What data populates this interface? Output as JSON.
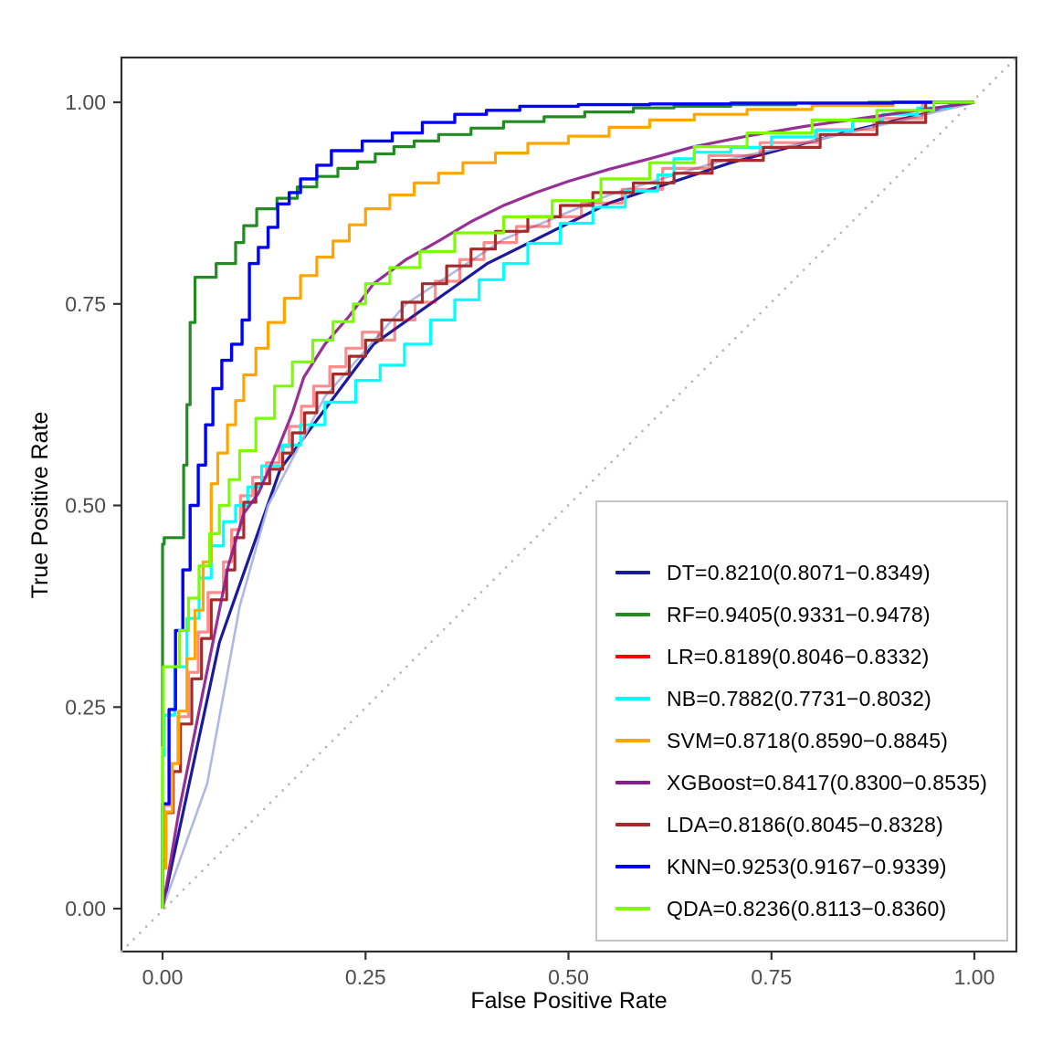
{
  "figure": {
    "kind": "ROC curve comparison plot",
    "background_color": "#ffffff"
  },
  "chart_data": {
    "type": "line",
    "title": "",
    "xlabel": "False Positive Rate",
    "ylabel": "True Positive Rate",
    "xlim": [
      0,
      1
    ],
    "ylim": [
      0,
      1
    ],
    "grid": false,
    "x_ticks": [
      "0.00",
      "0.25",
      "0.50",
      "0.75",
      "1.00"
    ],
    "y_ticks": [
      "0.00",
      "0.25",
      "0.50",
      "0.75",
      "1.00"
    ],
    "x_tick_values": [
      0,
      0.25,
      0.5,
      0.75,
      1
    ],
    "y_tick_values": [
      0,
      0.25,
      0.5,
      0.75,
      1
    ],
    "diagonal_reference": {
      "description": "chance line y = x",
      "style": "dotted",
      "color": "#b5b5b5",
      "from": [
        0,
        0
      ],
      "to": [
        1,
        1
      ]
    },
    "legend": {
      "position": "bottom-right",
      "border_color": "#c5c5c5",
      "background": "#ffffff"
    },
    "series": [
      {
        "name": "DT",
        "label": "DT=0.8210(0.8071−0.8349)",
        "auc": 0.821,
        "ci_low": 0.8071,
        "ci_high": 0.8349,
        "color": "#1a1a9c",
        "width": 3.2,
        "opacity": 1,
        "step": false,
        "z": 1,
        "in_legend": true,
        "x": [
          0,
          0.07,
          0.145,
          0.26,
          0.4,
          0.55,
          0.7,
          0.85,
          1
        ],
        "y": [
          0,
          0.33,
          0.545,
          0.7,
          0.8,
          0.875,
          0.925,
          0.965,
          1
        ]
      },
      {
        "name": "RF",
        "label": "RF=0.9405(0.9331−0.9478)",
        "auc": 0.9405,
        "ci_low": 0.9331,
        "ci_high": 0.9478,
        "color": "#228B22",
        "width": 3.2,
        "opacity": 1,
        "step": true,
        "z": 8,
        "in_legend": true,
        "x": [
          0,
          0.002,
          0.026,
          0.03,
          0.034,
          0.04,
          0.066,
          0.09,
          0.1,
          0.116,
          0.141,
          0.166,
          0.19,
          0.216,
          0.24,
          0.262,
          0.285,
          0.31,
          0.34,
          0.38,
          0.42,
          0.47,
          0.52,
          0.58,
          0.63,
          0.7,
          0.78,
          0.87,
          1
        ],
        "y": [
          0,
          0.452,
          0.46,
          0.55,
          0.625,
          0.727,
          0.783,
          0.8,
          0.826,
          0.847,
          0.868,
          0.881,
          0.895,
          0.908,
          0.918,
          0.926,
          0.936,
          0.945,
          0.952,
          0.96,
          0.968,
          0.976,
          0.982,
          0.988,
          0.993,
          0.995,
          0.997,
          0.999,
          1
        ]
      },
      {
        "name": "LR",
        "label": "LR=0.8189(0.8046−0.8332)",
        "auc": 0.8189,
        "ci_low": 0.8046,
        "ci_high": 0.8332,
        "color": "#ff0000",
        "width": 3.2,
        "opacity": 0.45,
        "step": true,
        "z": 3,
        "in_legend": true,
        "x": [
          0,
          0.002,
          0.01,
          0.019,
          0.032,
          0.044,
          0.056,
          0.075,
          0.085,
          0.096,
          0.111,
          0.128,
          0.144,
          0.156,
          0.171,
          0.186,
          0.206,
          0.226,
          0.246,
          0.266,
          0.286,
          0.311,
          0.336,
          0.366,
          0.396,
          0.436,
          0.476,
          0.516,
          0.566,
          0.616,
          0.673,
          0.736,
          0.806,
          0.876,
          0.936,
          1
        ],
        "y": [
          0,
          0.07,
          0.128,
          0.18,
          0.238,
          0.293,
          0.343,
          0.392,
          0.43,
          0.47,
          0.512,
          0.535,
          0.553,
          0.573,
          0.598,
          0.623,
          0.648,
          0.672,
          0.695,
          0.715,
          0.705,
          0.73,
          0.752,
          0.778,
          0.805,
          0.826,
          0.846,
          0.858,
          0.875,
          0.892,
          0.918,
          0.934,
          0.95,
          0.966,
          0.98,
          1
        ]
      },
      {
        "name": "NB",
        "label": "NB=0.7882(0.7731−0.8032)",
        "auc": 0.7882,
        "ci_low": 0.7731,
        "ci_high": 0.8032,
        "color": "#00FFFF",
        "width": 3.2,
        "opacity": 1,
        "step": true,
        "z": 4,
        "in_legend": true,
        "x": [
          0,
          0.002,
          0.015,
          0.03,
          0.045,
          0.06,
          0.075,
          0.09,
          0.105,
          0.122,
          0.148,
          0.17,
          0.2,
          0.238,
          0.268,
          0.298,
          0.33,
          0.36,
          0.39,
          0.42,
          0.45,
          0.49,
          0.53,
          0.57,
          0.61,
          0.63,
          0.655,
          0.7,
          0.75,
          0.804,
          0.85,
          0.887,
          0.93,
          0.97,
          1
        ],
        "y": [
          0,
          0.19,
          0.24,
          0.3,
          0.36,
          0.41,
          0.45,
          0.48,
          0.5,
          0.523,
          0.549,
          0.575,
          0.6,
          0.628,
          0.655,
          0.674,
          0.7,
          0.73,
          0.755,
          0.78,
          0.8,
          0.825,
          0.85,
          0.87,
          0.89,
          0.91,
          0.93,
          0.938,
          0.944,
          0.957,
          0.965,
          0.977,
          0.985,
          0.993,
          1
        ]
      },
      {
        "name": "SVM",
        "label": "SVM=0.8718(0.8590−0.8845)",
        "auc": 0.8718,
        "ci_low": 0.859,
        "ci_high": 0.8845,
        "color": "#FFA500",
        "width": 3.2,
        "opacity": 1,
        "step": true,
        "z": 7,
        "in_legend": true,
        "x": [
          0,
          0.004,
          0.012,
          0.02,
          0.03,
          0.04,
          0.05,
          0.06,
          0.068,
          0.08,
          0.09,
          0.1,
          0.115,
          0.13,
          0.15,
          0.17,
          0.19,
          0.21,
          0.23,
          0.25,
          0.28,
          0.31,
          0.34,
          0.37,
          0.41,
          0.45,
          0.5,
          0.55,
          0.6,
          0.655,
          0.72,
          0.8,
          0.9,
          1
        ],
        "y": [
          0,
          0.05,
          0.12,
          0.18,
          0.245,
          0.31,
          0.37,
          0.43,
          0.527,
          0.565,
          0.6,
          0.63,
          0.662,
          0.695,
          0.727,
          0.757,
          0.785,
          0.808,
          0.828,
          0.848,
          0.868,
          0.885,
          0.9,
          0.912,
          0.925,
          0.937,
          0.949,
          0.958,
          0.969,
          0.978,
          0.985,
          0.991,
          0.996,
          1
        ]
      },
      {
        "name": "XGBoost",
        "label": "XGBoost=0.8417(0.8300−0.8535)",
        "auc": 0.8417,
        "ci_low": 0.83,
        "ci_high": 0.8535,
        "color": "#8B1A8B",
        "width": 3.2,
        "opacity": 0.9,
        "step": false,
        "z": 6,
        "in_legend": true,
        "x": [
          0,
          0.02,
          0.04,
          0.06,
          0.081,
          0.1,
          0.118,
          0.14,
          0.16,
          0.174,
          0.2,
          0.23,
          0.26,
          0.3,
          0.34,
          0.38,
          0.42,
          0.46,
          0.5,
          0.55,
          0.6,
          0.655,
          0.72,
          0.79,
          0.86,
          0.93,
          1
        ],
        "y": [
          0,
          0.12,
          0.22,
          0.32,
          0.425,
          0.49,
          0.515,
          0.565,
          0.615,
          0.659,
          0.7,
          0.735,
          0.775,
          0.805,
          0.828,
          0.852,
          0.872,
          0.888,
          0.902,
          0.917,
          0.93,
          0.945,
          0.958,
          0.97,
          0.98,
          0.99,
          1
        ]
      },
      {
        "name": "LDA",
        "label": "LDA=0.8186(0.8045−0.8328)",
        "auc": 0.8186,
        "ci_low": 0.8045,
        "ci_high": 0.8328,
        "color": "#A52A2A",
        "width": 3.2,
        "opacity": 1,
        "step": true,
        "z": 5,
        "in_legend": true,
        "x": [
          0,
          0.004,
          0.013,
          0.022,
          0.036,
          0.048,
          0.06,
          0.079,
          0.089,
          0.1,
          0.115,
          0.132,
          0.148,
          0.16,
          0.175,
          0.19,
          0.21,
          0.23,
          0.25,
          0.27,
          0.295,
          0.32,
          0.35,
          0.38,
          0.41,
          0.45,
          0.49,
          0.53,
          0.58,
          0.63,
          0.677,
          0.74,
          0.81,
          0.88,
          0.94,
          1
        ],
        "y": [
          0,
          0.06,
          0.119,
          0.17,
          0.229,
          0.285,
          0.335,
          0.383,
          0.42,
          0.46,
          0.504,
          0.527,
          0.545,
          0.565,
          0.59,
          0.615,
          0.64,
          0.663,
          0.685,
          0.705,
          0.73,
          0.752,
          0.775,
          0.797,
          0.818,
          0.84,
          0.858,
          0.872,
          0.888,
          0.9,
          0.912,
          0.928,
          0.944,
          0.96,
          0.975,
          1
        ]
      },
      {
        "name": "KNN",
        "label": "KNN=0.9253(0.9167−0.9339)",
        "auc": 0.9253,
        "ci_low": 0.9167,
        "ci_high": 0.9339,
        "color": "#0000FF",
        "width": 3.4,
        "opacity": 1,
        "step": true,
        "z": 9,
        "in_legend": true,
        "x": [
          0,
          0.008,
          0.016,
          0.025,
          0.034,
          0.044,
          0.053,
          0.062,
          0.073,
          0.085,
          0.098,
          0.107,
          0.107,
          0.118,
          0.13,
          0.142,
          0.156,
          0.17,
          0.19,
          0.208,
          0.246,
          0.283,
          0.32,
          0.36,
          0.399,
          0.44,
          0.512,
          0.6,
          0.7,
          0.8,
          0.9,
          1
        ],
        "y": [
          0,
          0.13,
          0.247,
          0.345,
          0.42,
          0.5,
          0.55,
          0.6,
          0.645,
          0.68,
          0.7,
          0.73,
          0.78,
          0.8,
          0.82,
          0.845,
          0.874,
          0.888,
          0.905,
          0.922,
          0.94,
          0.952,
          0.962,
          0.975,
          0.985,
          0.99,
          0.995,
          0.997,
          0.998,
          0.999,
          0.999,
          1
        ]
      },
      {
        "name": "QDA",
        "label": "QDA=0.8236(0.8113−0.8360)",
        "auc": 0.8236,
        "ci_low": 0.8113,
        "ci_high": 0.836,
        "color": "#7CFC00",
        "width": 3.2,
        "opacity": 1,
        "step": true,
        "z": 10,
        "in_legend": true,
        "x": [
          0,
          0.001,
          0.021,
          0.032,
          0.045,
          0.058,
          0.07,
          0.082,
          0.095,
          0.115,
          0.138,
          0.16,
          0.185,
          0.21,
          0.235,
          0.25,
          0.28,
          0.317,
          0.36,
          0.42,
          0.48,
          0.54,
          0.6,
          0.655,
          0.72,
          0.8,
          0.88,
          0.95,
          1
        ],
        "y": [
          0,
          0.2,
          0.3,
          0.345,
          0.385,
          0.425,
          0.465,
          0.5,
          0.532,
          0.568,
          0.608,
          0.648,
          0.678,
          0.705,
          0.728,
          0.75,
          0.775,
          0.795,
          0.815,
          0.838,
          0.858,
          0.878,
          0.905,
          0.925,
          0.945,
          0.962,
          0.978,
          0.99,
          1
        ]
      },
      {
        "name": "DT-smooth",
        "label": "",
        "color": "#aab4e0",
        "width": 2.6,
        "opacity": 0.95,
        "step": false,
        "z": 2,
        "in_legend": false,
        "x": [
          0,
          0.055,
          0.095,
          0.13,
          0.2,
          0.3,
          0.42,
          0.55,
          0.68,
          0.8,
          0.92,
          1
        ],
        "y": [
          0,
          0.155,
          0.375,
          0.5,
          0.635,
          0.75,
          0.83,
          0.885,
          0.925,
          0.952,
          0.98,
          1
        ]
      }
    ]
  }
}
